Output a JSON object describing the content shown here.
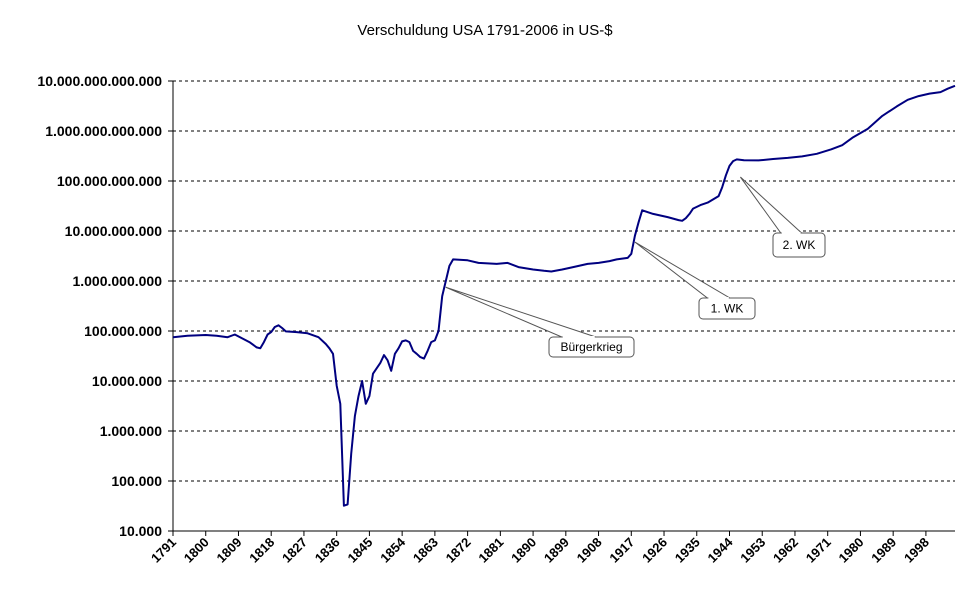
{
  "chart_data": {
    "type": "line",
    "title": "Verschuldung USA 1791-2006 in US-$",
    "xlabel": "",
    "ylabel": "",
    "y_scale": "log",
    "ylim": [
      10000,
      10000000000000
    ],
    "xlim": [
      1791,
      2006
    ],
    "grid": true,
    "y_ticks": [
      {
        "value": 10000,
        "label": "10.000"
      },
      {
        "value": 100000,
        "label": "100.000"
      },
      {
        "value": 1000000,
        "label": "1.000.000"
      },
      {
        "value": 10000000,
        "label": "10.000.000"
      },
      {
        "value": 100000000,
        "label": "100.000.000"
      },
      {
        "value": 1000000000,
        "label": "1.000.000.000"
      },
      {
        "value": 10000000000,
        "label": "10.000.000.000"
      },
      {
        "value": 100000000000,
        "label": "100.000.000.000"
      },
      {
        "value": 1000000000000,
        "label": "1.000.000.000.000"
      },
      {
        "value": 10000000000000,
        "label": "10.000.000.000.000"
      }
    ],
    "x_ticks": [
      "1791",
      "1800",
      "1809",
      "1818",
      "1827",
      "1836",
      "1845",
      "1854",
      "1863",
      "1872",
      "1881",
      "1890",
      "1899",
      "1908",
      "1917",
      "1926",
      "1935",
      "1944",
      "1953",
      "1962",
      "1971",
      "1980",
      "1989",
      "1998"
    ],
    "series": [
      {
        "color": "#000080",
        "points": [
          [
            1791,
            75000000
          ],
          [
            1795,
            80000000
          ],
          [
            1800,
            83000000
          ],
          [
            1803,
            80000000
          ],
          [
            1806,
            75000000
          ],
          [
            1808,
            85000000
          ],
          [
            1812,
            60000000
          ],
          [
            1814,
            47000000
          ],
          [
            1815,
            45000000
          ],
          [
            1816,
            60000000
          ],
          [
            1817,
            85000000
          ],
          [
            1818,
            95000000
          ],
          [
            1819,
            120000000
          ],
          [
            1820,
            130000000
          ],
          [
            1821,
            115000000
          ],
          [
            1822,
            98000000
          ],
          [
            1825,
            95000000
          ],
          [
            1828,
            90000000
          ],
          [
            1831,
            75000000
          ],
          [
            1833,
            55000000
          ],
          [
            1834,
            45000000
          ],
          [
            1835,
            35000000
          ],
          [
            1836,
            8000000
          ],
          [
            1837,
            3500000
          ],
          [
            1838,
            32000
          ],
          [
            1839,
            34000
          ],
          [
            1840,
            350000
          ],
          [
            1841,
            2000000
          ],
          [
            1842,
            5000000
          ],
          [
            1843,
            10000000
          ],
          [
            1844,
            3500000
          ],
          [
            1845,
            5000000
          ],
          [
            1846,
            14000000
          ],
          [
            1848,
            23000000
          ],
          [
            1849,
            33000000
          ],
          [
            1850,
            26000000
          ],
          [
            1851,
            16000000
          ],
          [
            1852,
            35000000
          ],
          [
            1853,
            45000000
          ],
          [
            1854,
            62000000
          ],
          [
            1855,
            65000000
          ],
          [
            1856,
            60000000
          ],
          [
            1857,
            40000000
          ],
          [
            1858,
            35000000
          ],
          [
            1859,
            30000000
          ],
          [
            1860,
            28000000
          ],
          [
            1861,
            40000000
          ],
          [
            1862,
            60000000
          ],
          [
            1863,
            65000000
          ],
          [
            1864,
            100000000
          ],
          [
            1865,
            500000000
          ],
          [
            1866,
            1000000000
          ],
          [
            1867,
            2000000000
          ],
          [
            1868,
            2700000000
          ],
          [
            1872,
            2600000000
          ],
          [
            1875,
            2300000000
          ],
          [
            1880,
            2200000000
          ],
          [
            1883,
            2300000000
          ],
          [
            1886,
            1900000000
          ],
          [
            1890,
            1700000000
          ],
          [
            1893,
            1600000000
          ],
          [
            1895,
            1550000000
          ],
          [
            1898,
            1700000000
          ],
          [
            1901,
            1900000000
          ],
          [
            1905,
            2200000000
          ],
          [
            1908,
            2300000000
          ],
          [
            1911,
            2500000000
          ],
          [
            1913,
            2700000000
          ],
          [
            1916,
            2900000000
          ],
          [
            1917,
            3500000000
          ],
          [
            1918,
            8000000000
          ],
          [
            1919,
            15000000000
          ],
          [
            1920,
            26000000000
          ],
          [
            1923,
            22000000000
          ],
          [
            1927,
            19000000000
          ],
          [
            1930,
            16500000000
          ],
          [
            1931,
            16000000000
          ],
          [
            1932,
            18000000000
          ],
          [
            1933,
            22000000000
          ],
          [
            1934,
            28000000000
          ],
          [
            1936,
            33000000000
          ],
          [
            1938,
            37000000000
          ],
          [
            1941,
            50000000000
          ],
          [
            1942,
            75000000000
          ],
          [
            1943,
            130000000000
          ],
          [
            1944,
            200000000000
          ],
          [
            1945,
            250000000000
          ],
          [
            1946,
            270000000000
          ],
          [
            1948,
            260000000000
          ],
          [
            1952,
            258000000000
          ],
          [
            1956,
            275000000000
          ],
          [
            1960,
            290000000000
          ],
          [
            1964,
            310000000000
          ],
          [
            1968,
            350000000000
          ],
          [
            1972,
            430000000000
          ],
          [
            1975,
            520000000000
          ],
          [
            1978,
            750000000000
          ],
          [
            1982,
            1100000000000
          ],
          [
            1986,
            2000000000000
          ],
          [
            1990,
            3100000000000
          ],
          [
            1993,
            4200000000000
          ],
          [
            1996,
            5000000000000
          ],
          [
            1999,
            5600000000000
          ],
          [
            2002,
            6000000000000
          ],
          [
            2004,
            7000000000000
          ],
          [
            2006,
            8000000000000
          ]
        ]
      }
    ],
    "annotations": [
      {
        "text": "Bürgerkrieg",
        "x": 1866,
        "y": 750000000
      },
      {
        "text": "1. WK",
        "x": 1918,
        "y": 6000000000
      },
      {
        "text": "2. WK",
        "x": 1947,
        "y": 120000000000
      }
    ]
  }
}
